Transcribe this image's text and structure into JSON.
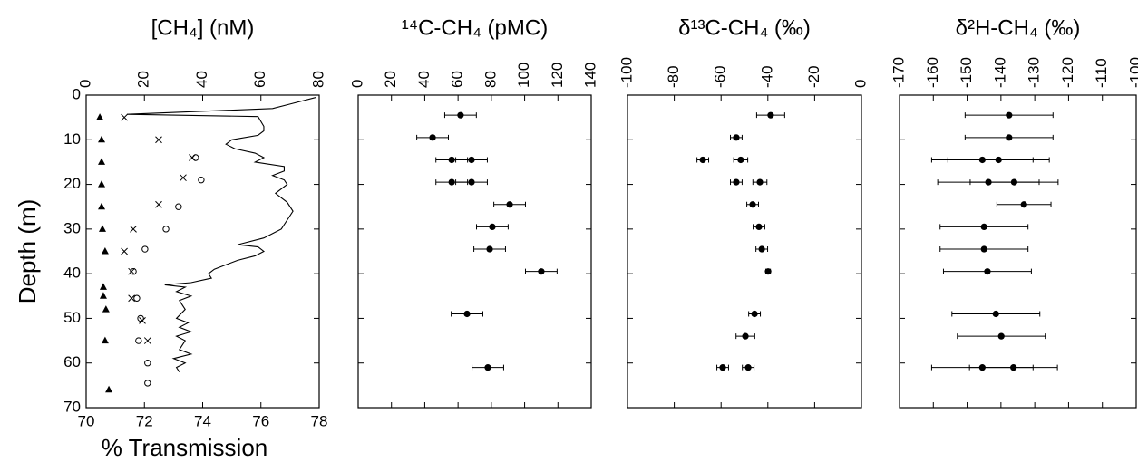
{
  "chart_data": [
    {
      "type": "scatter",
      "title": "[CH₄] (nM)",
      "ylabel": "Depth (m)",
      "x2label": "% Transmission",
      "xlim": [
        0,
        80
      ],
      "xticks": [
        0,
        20,
        40,
        60,
        80
      ],
      "x2lim": [
        70,
        78
      ],
      "x2ticks": [
        70,
        72,
        74,
        76,
        78
      ],
      "ylim": [
        0,
        70
      ],
      "yticks": [
        0,
        10,
        20,
        30,
        40,
        50,
        60,
        70
      ],
      "invert_y": true,
      "ytick_labels": true,
      "series": [
        {
          "marker": "triangle",
          "color": "#000000",
          "x": [
            4.7,
            5.3,
            5.3,
            5.3,
            5.3,
            5.6,
            6.5,
            5.9,
            5.9,
            6.8,
            6.5,
            7.8
          ],
          "y": [
            5,
            10,
            15,
            20,
            25,
            30,
            35,
            43,
            45,
            48,
            55,
            66
          ]
        },
        {
          "marker": "cross",
          "color": "#000000",
          "x": [
            13.1,
            24.9,
            36.4,
            33.3,
            24.9,
            16.2,
            13.1,
            15.6,
            15.6,
            19.3,
            21.1
          ],
          "y": [
            5,
            10,
            14,
            18.5,
            24.5,
            30,
            35,
            39.5,
            45.5,
            50.5,
            55
          ]
        },
        {
          "marker": "open-circle",
          "color": "#000000",
          "x": [
            37.6,
            39.5,
            31.7,
            27.4,
            20.2,
            16.2,
            17.4,
            18.7,
            18.0,
            21.1,
            21.1
          ],
          "y": [
            14,
            19,
            25,
            30,
            34.5,
            39.5,
            45.5,
            50,
            55,
            60,
            64.5
          ]
        },
        {
          "marker": "line",
          "axis": "x2",
          "color": "#000000",
          "x": [
            77.9,
            77.0,
            76.4,
            71.4,
            75.9,
            76.1,
            76.1,
            75.9,
            75.0,
            74.8,
            75.1,
            75.8,
            76.1,
            75.8,
            76.8,
            76.8,
            76.4,
            76.8,
            76.9,
            76.5,
            76.9,
            77.1,
            76.9,
            76.7,
            76.1,
            75.2,
            75.9,
            76.1,
            75.8,
            75.2,
            74.8,
            74.4,
            74.2,
            74.3,
            73.6,
            72.7,
            73.4,
            73.1,
            73.6,
            73.2,
            73.4,
            73.1,
            73.5,
            73.2,
            73.6,
            73.1,
            73.4,
            73.2,
            73.6,
            73.0,
            73.4,
            73.1,
            73.2
          ],
          "y": [
            0.5,
            2,
            3,
            4.3,
            4.8,
            7,
            8,
            9,
            10,
            11,
            12,
            13,
            14,
            15,
            16,
            17,
            18,
            19,
            20,
            22,
            24,
            26,
            28,
            30,
            32,
            33.5,
            34,
            35,
            36,
            37,
            38,
            39,
            40,
            41,
            42,
            42.5,
            43,
            44,
            45,
            46,
            48,
            50,
            51,
            52,
            53,
            54,
            55,
            57,
            58,
            59,
            60,
            61,
            62
          ]
        }
      ]
    },
    {
      "type": "errorbar",
      "title": "¹⁴C-CH₄ (pMC)",
      "xlim": [
        0,
        140
      ],
      "xticks": [
        0,
        20,
        40,
        60,
        80,
        100,
        120,
        140
      ],
      "ylim": [
        0,
        70
      ],
      "yticks": [
        0,
        10,
        20,
        30,
        40,
        50,
        60,
        70
      ],
      "invert_y": true,
      "ytick_labels": false,
      "series": [
        {
          "color": "#000000",
          "x": [
            61.5,
            44.7,
            56.2,
            68.1,
            56.2,
            68.1,
            91,
            80.6,
            79,
            110,
            65.4,
            77.9
          ],
          "y": [
            4.5,
            9.5,
            14.5,
            14.5,
            19.5,
            19.5,
            24.5,
            29.5,
            34.5,
            39.5,
            49,
            61
          ],
          "xerr": [
            9.5,
            9.5,
            9.5,
            9.5,
            9.5,
            9.5,
            9.5,
            9.5,
            9.5,
            9.5,
            9.5,
            9.5
          ]
        }
      ]
    },
    {
      "type": "errorbar",
      "title": "δ¹³C-CH₄ (‰)",
      "xlim": [
        -100,
        0
      ],
      "xticks": [
        -100,
        -80,
        -60,
        -40,
        -20,
        0
      ],
      "ylim": [
        0,
        70
      ],
      "yticks": [
        0,
        10,
        20,
        30,
        40,
        50,
        60,
        70
      ],
      "invert_y": true,
      "ytick_labels": false,
      "series": [
        {
          "color": "#000000",
          "x": [
            -38.8,
            -53.5,
            -67.8,
            -51.6,
            -53.5,
            -43.4,
            -46.5,
            -43.8,
            -42.6,
            -39.9,
            -45.7,
            -49.6,
            -59.3,
            -48.4
          ],
          "y": [
            4.5,
            9.5,
            14.5,
            14.5,
            19.5,
            19.5,
            24.5,
            29.5,
            34.5,
            39.5,
            49,
            54,
            61,
            61
          ],
          "xerr": [
            6,
            2.5,
            2.5,
            3,
            2.5,
            3,
            2.5,
            2.5,
            2.5,
            1,
            2.5,
            4,
            2.5,
            2.5
          ]
        }
      ]
    },
    {
      "type": "errorbar",
      "title": "δ²H-CH₄ (‰)",
      "xlim": [
        -170,
        -100
      ],
      "xticks": [
        -170,
        -160,
        -150,
        -140,
        -130,
        -120,
        -110,
        -100
      ],
      "ylim": [
        0,
        70
      ],
      "yticks": [
        0,
        10,
        20,
        30,
        40,
        50,
        60,
        70
      ],
      "invert_y": true,
      "ytick_labels": false,
      "series": [
        {
          "color": "#000000",
          "x": [
            -137.6,
            -137.6,
            -145.5,
            -140.7,
            -143.7,
            -136.1,
            -133.2,
            -145,
            -145,
            -144,
            -141.5,
            -139.9,
            -145.5,
            -136.3
          ],
          "y": [
            4.5,
            9.5,
            14.5,
            14.5,
            19.5,
            19.5,
            24.5,
            29.5,
            34.5,
            39.5,
            49,
            54,
            61,
            61
          ],
          "xerr": [
            13,
            13,
            15,
            15,
            15,
            13,
            8,
            13,
            13,
            13,
            13,
            13,
            15,
            13
          ]
        }
      ]
    }
  ]
}
